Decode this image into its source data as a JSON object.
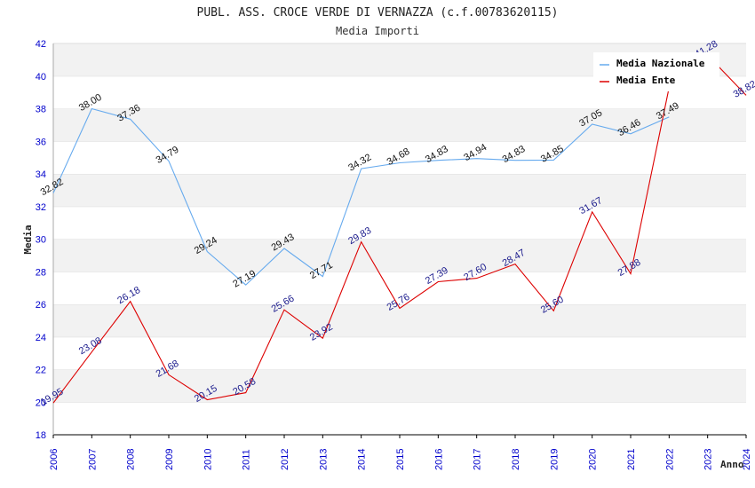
{
  "chart_data": {
    "type": "line",
    "title": "PUBL. ASS. CROCE VERDE DI VERNAZZA (c.f.00783620115)",
    "subtitle": "Media Importi",
    "xlabel": "Anno",
    "ylabel": "Media",
    "ylim": [
      18,
      42
    ],
    "yticks": [
      "18",
      "20",
      "22",
      "24",
      "26",
      "28",
      "30",
      "32",
      "34",
      "36",
      "38",
      "40",
      "42"
    ],
    "categories": [
      "2006",
      "2007",
      "2008",
      "2009",
      "2010",
      "2011",
      "2012",
      "2013",
      "2014",
      "2015",
      "2016",
      "2017",
      "2018",
      "2019",
      "2020",
      "2021",
      "2022",
      "2023",
      "2024"
    ],
    "legend_position": "top-right",
    "grid": "horizontal bands",
    "series": [
      {
        "name": "Media Nazionale",
        "color": "#66aaee",
        "values": [
          32.82,
          38.0,
          37.36,
          34.79,
          29.24,
          27.19,
          29.43,
          27.71,
          34.32,
          34.68,
          34.83,
          34.94,
          34.83,
          34.85,
          37.05,
          36.46,
          37.49,
          null,
          null
        ],
        "labels": [
          "32.82",
          "38.00",
          "37.36",
          "34.79",
          "29.24",
          "27.19",
          "29.43",
          "27.71",
          "34.32",
          "34.68",
          "34.83",
          "34.94",
          "34.83",
          "34.85",
          "37.05",
          "36.46",
          "37.49",
          null,
          null
        ]
      },
      {
        "name": "Media Ente",
        "color": "#dd0000",
        "values": [
          19.95,
          23.08,
          26.18,
          21.68,
          20.15,
          20.58,
          25.66,
          23.92,
          29.83,
          25.76,
          27.39,
          27.6,
          28.47,
          25.6,
          31.67,
          27.88,
          39.3,
          41.28,
          38.82
        ],
        "labels": [
          "19.95",
          "23.08",
          "26.18",
          "21.68",
          "20.15",
          "20.58",
          "25.66",
          "23.92",
          "29.83",
          "25.76",
          "27.39",
          "27.60",
          "28.47",
          "25.60",
          "31.67",
          "27.88",
          null,
          "41.28",
          "38.82"
        ]
      }
    ]
  }
}
